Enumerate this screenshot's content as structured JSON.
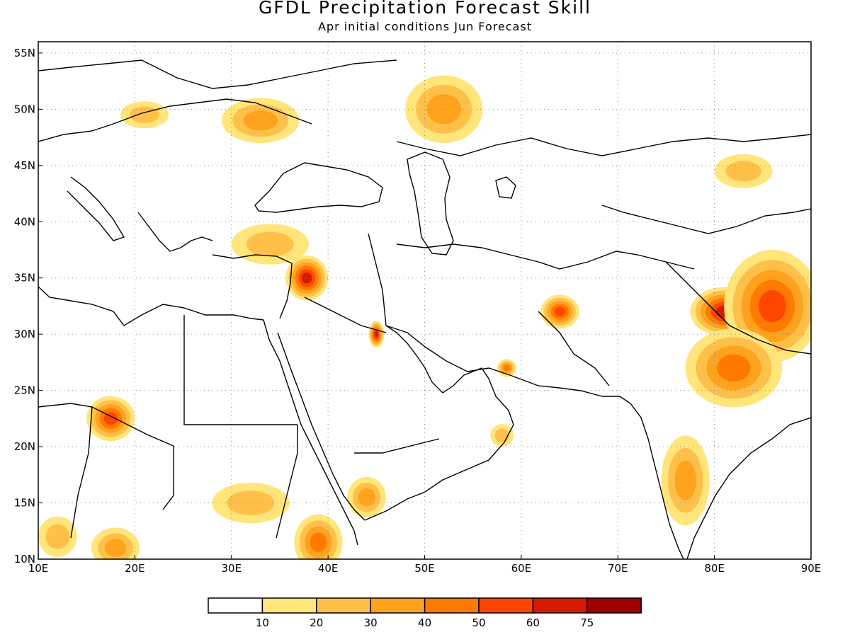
{
  "header": {
    "title": "GFDL Precipitation Forecast Skill",
    "subtitle": "Apr initial conditions  Jun Forecast"
  },
  "map": {
    "projection": "lat-lon",
    "lon_range": [
      10,
      90
    ],
    "lat_range": [
      10,
      56
    ],
    "grid": "dotted",
    "lon_ticks": [
      "10E",
      "20E",
      "30E",
      "40E",
      "50E",
      "60E",
      "70E",
      "80E",
      "90E"
    ],
    "lat_ticks": [
      "10N",
      "15N",
      "20N",
      "25N",
      "30N",
      "35N",
      "40N",
      "45N",
      "50N",
      "55N"
    ],
    "lon_tick_values": [
      10,
      20,
      30,
      40,
      50,
      60,
      70,
      80,
      90
    ],
    "lat_tick_values": [
      10,
      15,
      20,
      25,
      30,
      35,
      40,
      45,
      50,
      55
    ],
    "skill_regions": [
      {
        "name": "north-india-himalaya",
        "lon": 81,
        "lat": 32,
        "rx": 3.5,
        "ry": 2.2,
        "max_level": 6
      },
      {
        "name": "tibet-east",
        "lon": 86,
        "lat": 32.5,
        "rx": 5,
        "ry": 5,
        "max_level": 5
      },
      {
        "name": "nepal-gangetic",
        "lon": 82,
        "lat": 27,
        "rx": 5,
        "ry": 3.5,
        "max_level": 4
      },
      {
        "name": "central-india",
        "lon": 77,
        "lat": 17,
        "rx": 2.5,
        "ry": 4,
        "max_level": 3
      },
      {
        "name": "syria",
        "lon": 37.8,
        "lat": 35,
        "rx": 2.2,
        "ry": 2,
        "max_level": 6
      },
      {
        "name": "turkey-south",
        "lon": 34,
        "lat": 38,
        "rx": 4,
        "ry": 1.8,
        "max_level": 2
      },
      {
        "name": "iraq-south",
        "lon": 45,
        "lat": 30,
        "rx": 0.8,
        "ry": 1.2,
        "max_level": 6
      },
      {
        "name": "afghanistan",
        "lon": 64,
        "lat": 32,
        "rx": 2,
        "ry": 1.5,
        "max_level": 5
      },
      {
        "name": "kazakhstan-west",
        "lon": 52,
        "lat": 50,
        "rx": 4,
        "ry": 3,
        "max_level": 3
      },
      {
        "name": "ukraine",
        "lon": 33,
        "lat": 49,
        "rx": 4,
        "ry": 2,
        "max_level": 3
      },
      {
        "name": "chad",
        "lon": 17.5,
        "lat": 22.5,
        "rx": 2.5,
        "ry": 2,
        "max_level": 5
      },
      {
        "name": "ethiopia",
        "lon": 39,
        "lat": 11.5,
        "rx": 2.5,
        "ry": 2.5,
        "max_level": 4
      },
      {
        "name": "sudan",
        "lon": 32,
        "lat": 15,
        "rx": 4,
        "ry": 1.8,
        "max_level": 2
      },
      {
        "name": "yemen",
        "lon": 44,
        "lat": 15.5,
        "rx": 2,
        "ry": 1.8,
        "max_level": 3
      },
      {
        "name": "chad-south",
        "lon": 18,
        "lat": 11,
        "rx": 2.5,
        "ry": 1.8,
        "max_level": 3
      },
      {
        "name": "chad-lake",
        "lon": 12,
        "lat": 12,
        "rx": 2,
        "ry": 1.8,
        "max_level": 2
      },
      {
        "name": "hungary",
        "lon": 21,
        "lat": 49.5,
        "rx": 2.5,
        "ry": 1.2,
        "max_level": 2
      },
      {
        "name": "china-west",
        "lon": 83,
        "lat": 44.5,
        "rx": 3,
        "ry": 1.5,
        "max_level": 2
      },
      {
        "name": "oman",
        "lon": 58.5,
        "lat": 27,
        "rx": 1,
        "ry": 0.8,
        "max_level": 4
      },
      {
        "name": "arabia-south",
        "lon": 58,
        "lat": 21,
        "rx": 1.2,
        "ry": 1,
        "max_level": 2
      }
    ],
    "region_labels": []
  },
  "colorbar": {
    "levels": [
      "10",
      "20",
      "30",
      "40",
      "50",
      "60",
      "75"
    ],
    "colors": [
      "#ffffff",
      "#ffe57a",
      "#ffc04a",
      "#ffa21e",
      "#ff7a00",
      "#ff4600",
      "#d61a00",
      "#a00000"
    ]
  },
  "colors": {
    "coastline": "#000000",
    "grid": "#888888",
    "background": "#ffffff"
  }
}
